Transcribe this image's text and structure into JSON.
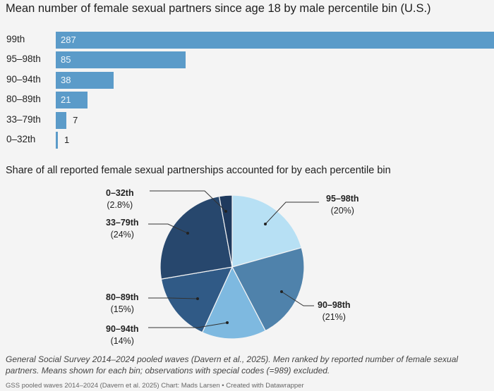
{
  "chart_data": [
    {
      "type": "bar",
      "title": "Mean number of female sexual partners since age 18 by male percentile bin (U.S.)",
      "categories": [
        "99th",
        "95–98th",
        "90–94th",
        "80–89th",
        "33–79th",
        "0–32th"
      ],
      "values": [
        287,
        85,
        38,
        21,
        7,
        1
      ],
      "xlim": [
        0,
        287
      ],
      "orientation": "horizontal",
      "grid": false,
      "colors": {
        "bar": "#5b9bc9"
      }
    },
    {
      "type": "pie",
      "title": "Share of all reported female sexual partnerships accounted for by each percentile bin",
      "slices": [
        {
          "label": "95–98th",
          "value": 20,
          "pct_label": "(20%)",
          "color": "#b7e0f4"
        },
        {
          "label": "90–98th",
          "value": 21,
          "pct_label": "(21%)",
          "color": "#4f82ab"
        },
        {
          "label": "90–94th",
          "value": 14,
          "pct_label": "(14%)",
          "color": "#7eb9e0"
        },
        {
          "label": "80–89th",
          "value": 15,
          "pct_label": "(15%)",
          "color": "#305a86"
        },
        {
          "label": "33–79th",
          "value": 24,
          "pct_label": "(24%)",
          "color": "#27476d"
        },
        {
          "label": "0–32th",
          "value": 2.8,
          "pct_label": "(2.8%)",
          "color": "#1f3a5e"
        }
      ],
      "legend": "none"
    }
  ],
  "notes": "General Social Survey 2014–2024 pooled waves (Davern et al., 2025). Men ranked by reported number of female sexual partners. Means shown for each bin; observations with special codes (=989) excluded.",
  "credit": "GSS pooled waves 2014–2024 (Davern et al. 2025) Chart: Mads Larsen • Created with Datawrapper"
}
